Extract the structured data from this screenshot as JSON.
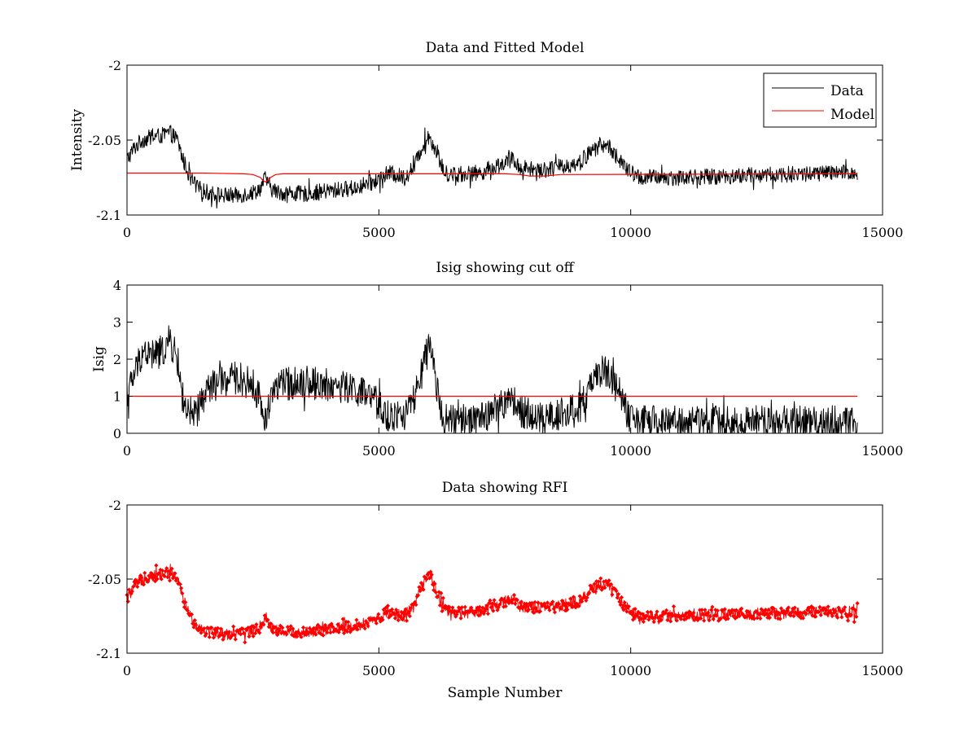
{
  "figure": {
    "background": "#ffffff",
    "axes_color": "#000000"
  },
  "chart_data": [
    {
      "type": "line",
      "title": "Data and Fitted Model",
      "xlabel": "",
      "ylabel": "Intensity",
      "xlim": [
        0,
        15000
      ],
      "ylim": [
        -2.1,
        -2.0
      ],
      "xticks": [
        0,
        5000,
        10000,
        15000
      ],
      "xticklabels": [
        "0",
        "5000",
        "10000",
        "15000"
      ],
      "yticks": [
        -2.1,
        -2.05,
        -2.0
      ],
      "yticklabels": [
        "-2.1",
        "-2.05",
        "-2"
      ],
      "grid": false,
      "legend": {
        "placement": "top-right",
        "entries": [
          "Data",
          "Model"
        ]
      },
      "series": [
        {
          "name": "Data",
          "color": "#000000",
          "style": "line",
          "noise": 0.0055,
          "x": [
            0,
            150,
            300,
            500,
            700,
            850,
            1000,
            1100,
            1250,
            1400,
            1600,
            1900,
            2200,
            2500,
            2650,
            2750,
            2850,
            3000,
            3500,
            4000,
            4500,
            4900,
            5200,
            5500,
            5700,
            5850,
            6000,
            6150,
            6300,
            6500,
            7000,
            7500,
            7650,
            7800,
            8200,
            8600,
            9000,
            9200,
            9400,
            9600,
            9800,
            10000,
            10200,
            11000,
            12000,
            13000,
            14000,
            14500
          ],
          "y": [
            -2.063,
            -2.055,
            -2.05,
            -2.048,
            -2.047,
            -2.045,
            -2.05,
            -2.062,
            -2.075,
            -2.082,
            -2.085,
            -2.087,
            -2.087,
            -2.085,
            -2.082,
            -2.075,
            -2.082,
            -2.085,
            -2.086,
            -2.084,
            -2.082,
            -2.078,
            -2.072,
            -2.075,
            -2.068,
            -2.055,
            -2.047,
            -2.058,
            -2.072,
            -2.073,
            -2.072,
            -2.065,
            -2.063,
            -2.068,
            -2.07,
            -2.068,
            -2.065,
            -2.058,
            -2.053,
            -2.055,
            -2.065,
            -2.072,
            -2.075,
            -2.075,
            -2.074,
            -2.073,
            -2.072,
            -2.072
          ]
        },
        {
          "name": "Model",
          "color": "#ff0000",
          "style": "line",
          "noise": 0,
          "x": [
            0,
            1500,
            2300,
            2500,
            2650,
            2700,
            2750,
            2800,
            2850,
            2950,
            3100,
            7500,
            7800,
            8000,
            8300,
            8600,
            14500
          ],
          "y": [
            -2.072,
            -2.072,
            -2.0725,
            -2.073,
            -2.075,
            -2.077,
            -2.078,
            -2.077,
            -2.075,
            -2.073,
            -2.0725,
            -2.0725,
            -2.073,
            -2.074,
            -2.074,
            -2.073,
            -2.0725
          ]
        }
      ]
    },
    {
      "type": "line",
      "title": "Isig showing cut off",
      "xlabel": "",
      "ylabel": "Isig",
      "xlim": [
        0,
        15000
      ],
      "ylim": [
        0,
        4
      ],
      "xticks": [
        0,
        5000,
        10000,
        15000
      ],
      "xticklabels": [
        "0",
        "5000",
        "10000",
        "15000"
      ],
      "yticks": [
        0,
        1,
        2,
        3,
        4
      ],
      "yticklabels": [
        "0",
        "1",
        "2",
        "3",
        "4"
      ],
      "grid": false,
      "series": [
        {
          "color": "#000000",
          "style": "line",
          "noise": 0.45,
          "x": [
            0,
            150,
            300,
            500,
            700,
            850,
            1000,
            1100,
            1250,
            1400,
            1600,
            1900,
            2200,
            2500,
            2650,
            2750,
            2850,
            3000,
            3500,
            4000,
            4500,
            4900,
            5200,
            5500,
            5700,
            5850,
            6000,
            6150,
            6300,
            6500,
            7000,
            7500,
            7650,
            7800,
            8200,
            8600,
            9000,
            9200,
            9400,
            9600,
            9800,
            10000,
            10200,
            11000,
            12000,
            13000,
            14000,
            14500
          ],
          "y": [
            1.0,
            1.6,
            2.2,
            2.1,
            2.2,
            2.5,
            2.0,
            1.0,
            0.3,
            0.6,
            1.2,
            1.4,
            1.5,
            1.3,
            0.9,
            0.2,
            1.1,
            1.3,
            1.4,
            1.3,
            1.2,
            0.9,
            0.4,
            0.5,
            0.9,
            1.6,
            2.4,
            1.2,
            0.4,
            0.3,
            0.4,
            0.8,
            0.9,
            0.6,
            0.4,
            0.5,
            0.7,
            1.2,
            1.7,
            1.6,
            1.0,
            0.35,
            0.3,
            0.3,
            0.3,
            0.3,
            0.3,
            0.3
          ]
        },
        {
          "color": "#ff0000",
          "style": "line",
          "noise": 0,
          "x": [
            0,
            14500
          ],
          "y": [
            1.0,
            1.0
          ]
        }
      ]
    },
    {
      "type": "scatter",
      "title": "Data showing RFI",
      "xlabel": "Sample Number",
      "ylabel": "",
      "xlim": [
        0,
        15000
      ],
      "ylim": [
        -2.1,
        -2.0
      ],
      "xticks": [
        0,
        5000,
        10000,
        15000
      ],
      "xticklabels": [
        "0",
        "5000",
        "10000",
        "15000"
      ],
      "yticks": [
        -2.1,
        -2.05,
        -2.0
      ],
      "yticklabels": [
        "-2.1",
        "-2.05",
        "-2"
      ],
      "grid": false,
      "series": [
        {
          "color": "#ff0000",
          "style": "line+markers",
          "noise": 0.004,
          "x": [
            0,
            150,
            300,
            500,
            700,
            850,
            1000,
            1100,
            1250,
            1400,
            1600,
            1900,
            2200,
            2500,
            2650,
            2750,
            2850,
            3000,
            3500,
            4000,
            4500,
            4900,
            5200,
            5500,
            5700,
            5850,
            6000,
            6150,
            6300,
            6500,
            7000,
            7500,
            7650,
            7800,
            8200,
            8600,
            9000,
            9200,
            9400,
            9600,
            9800,
            10000,
            10200,
            11000,
            12000,
            13000,
            14000,
            14500
          ],
          "y": [
            -2.063,
            -2.055,
            -2.05,
            -2.048,
            -2.047,
            -2.045,
            -2.05,
            -2.062,
            -2.075,
            -2.082,
            -2.085,
            -2.087,
            -2.087,
            -2.085,
            -2.082,
            -2.075,
            -2.082,
            -2.085,
            -2.086,
            -2.084,
            -2.082,
            -2.078,
            -2.072,
            -2.075,
            -2.068,
            -2.055,
            -2.047,
            -2.058,
            -2.072,
            -2.073,
            -2.072,
            -2.065,
            -2.063,
            -2.068,
            -2.07,
            -2.068,
            -2.065,
            -2.058,
            -2.053,
            -2.055,
            -2.065,
            -2.072,
            -2.075,
            -2.075,
            -2.074,
            -2.073,
            -2.072,
            -2.072
          ]
        }
      ]
    }
  ]
}
